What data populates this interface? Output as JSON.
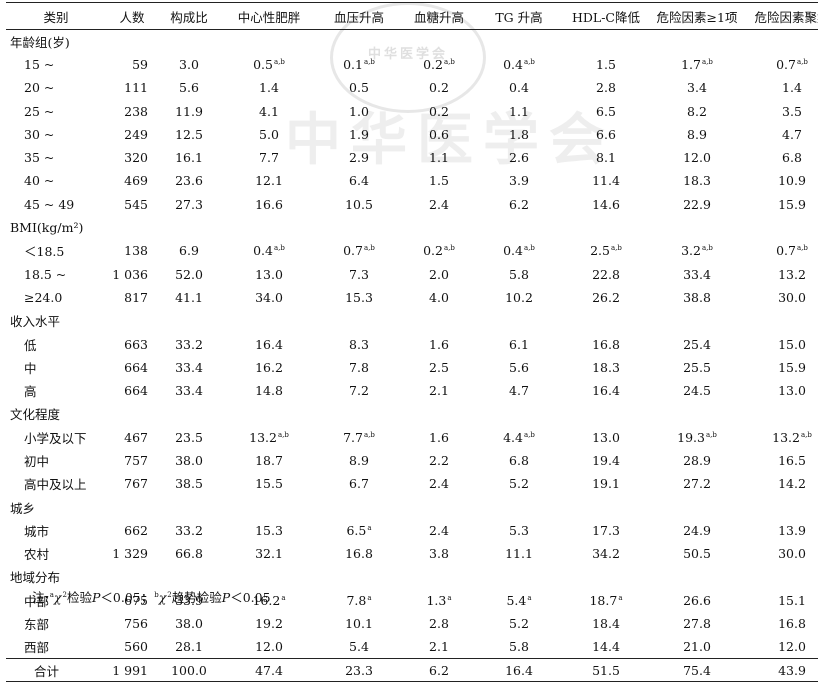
{
  "stamp_text": "中华医学会",
  "watermark_text": "中华医学会",
  "headers": [
    "类别",
    "人数",
    "构成比",
    "中心性肥胖",
    "血压升高",
    "血糖升高",
    "TG 升高",
    "HDL-C降低",
    "危险因素≥1项",
    "危险因素聚集"
  ],
  "groups": [
    {
      "title": "年龄组(岁)",
      "rows": [
        {
          "label": "15 ~",
          "cells": [
            "59",
            "3.0",
            "0.5",
            "0.1",
            "0.2",
            "0.4",
            "1.5",
            "1.7",
            "0.7"
          ],
          "sups": [
            "",
            "",
            "a,b",
            "a,b",
            "a,b",
            "a,b",
            "",
            "a,b",
            "a,b"
          ]
        },
        {
          "label": "20 ~",
          "cells": [
            "111",
            "5.6",
            "1.4",
            "0.5",
            "0.2",
            "0.4",
            "2.8",
            "3.4",
            "1.4"
          ],
          "sups": [
            "",
            "",
            "",
            "",
            "",
            "",
            "",
            "",
            ""
          ]
        },
        {
          "label": "25 ~",
          "cells": [
            "238",
            "11.9",
            "4.1",
            "1.0",
            "0.2",
            "1.1",
            "6.5",
            "8.2",
            "3.5"
          ],
          "sups": [
            "",
            "",
            "",
            "",
            "",
            "",
            "",
            "",
            ""
          ]
        },
        {
          "label": "30 ~",
          "cells": [
            "249",
            "12.5",
            "5.0",
            "1.9",
            "0.6",
            "1.8",
            "6.6",
            "8.9",
            "4.7"
          ],
          "sups": [
            "",
            "",
            "",
            "",
            "",
            "",
            "",
            "",
            ""
          ]
        },
        {
          "label": "35 ~",
          "cells": [
            "320",
            "16.1",
            "7.7",
            "2.9",
            "1.1",
            "2.6",
            "8.1",
            "12.0",
            "6.8"
          ],
          "sups": [
            "",
            "",
            "",
            "",
            "",
            "",
            "",
            "",
            ""
          ]
        },
        {
          "label": "40 ~",
          "cells": [
            "469",
            "23.6",
            "12.1",
            "6.4",
            "1.5",
            "3.9",
            "11.4",
            "18.3",
            "10.9"
          ],
          "sups": [
            "",
            "",
            "",
            "",
            "",
            "",
            "",
            "",
            ""
          ]
        },
        {
          "label": "45 ~ 49",
          "cells": [
            "545",
            "27.3",
            "16.6",
            "10.5",
            "2.4",
            "6.2",
            "14.6",
            "22.9",
            "15.9"
          ],
          "sups": [
            "",
            "",
            "",
            "",
            "",
            "",
            "",
            "",
            ""
          ]
        }
      ]
    },
    {
      "title": "BMI(kg/m²)",
      "rows": [
        {
          "label": "＜18.5",
          "cells": [
            "138",
            "6.9",
            "0.4",
            "0.7",
            "0.2",
            "0.4",
            "2.5",
            "3.2",
            "0.7"
          ],
          "sups": [
            "",
            "",
            "a,b",
            "a,b",
            "a,b",
            "a,b",
            "a,b",
            "a,b",
            "a,b"
          ]
        },
        {
          "label": "18.5 ~",
          "cells": [
            "1 036",
            "52.0",
            "13.0",
            "7.3",
            "2.0",
            "5.8",
            "22.8",
            "33.4",
            "13.2"
          ],
          "sups": [
            "",
            "",
            "",
            "",
            "",
            "",
            "",
            "",
            ""
          ]
        },
        {
          "label": "≥24.0",
          "cells": [
            "817",
            "41.1",
            "34.0",
            "15.3",
            "4.0",
            "10.2",
            "26.2",
            "38.8",
            "30.0"
          ],
          "sups": [
            "",
            "",
            "",
            "",
            "",
            "",
            "",
            "",
            ""
          ]
        }
      ]
    },
    {
      "title": "收入水平",
      "rows": [
        {
          "label": "低",
          "cells": [
            "663",
            "33.2",
            "16.4",
            "8.3",
            "1.6",
            "6.1",
            "16.8",
            "25.4",
            "15.0"
          ],
          "sups": [
            "",
            "",
            "",
            "",
            "",
            "",
            "",
            "",
            ""
          ]
        },
        {
          "label": "中",
          "cells": [
            "664",
            "33.4",
            "16.2",
            "7.8",
            "2.5",
            "5.6",
            "18.3",
            "25.5",
            "15.9"
          ],
          "sups": [
            "",
            "",
            "",
            "",
            "",
            "",
            "",
            "",
            ""
          ]
        },
        {
          "label": "高",
          "cells": [
            "664",
            "33.4",
            "14.8",
            "7.2",
            "2.1",
            "4.7",
            "16.4",
            "24.5",
            "13.0"
          ],
          "sups": [
            "",
            "",
            "",
            "",
            "",
            "",
            "",
            "",
            ""
          ]
        }
      ]
    },
    {
      "title": "文化程度",
      "rows": [
        {
          "label": "小学及以下",
          "cells": [
            "467",
            "23.5",
            "13.2",
            "7.7",
            "1.6",
            "4.4",
            "13.0",
            "19.3",
            "13.2"
          ],
          "sups": [
            "",
            "",
            "a,b",
            "a,b",
            "",
            "a,b",
            "",
            "a,b",
            "a,b"
          ]
        },
        {
          "label": "初中",
          "cells": [
            "757",
            "38.0",
            "18.7",
            "8.9",
            "2.2",
            "6.8",
            "19.4",
            "28.9",
            "16.5"
          ],
          "sups": [
            "",
            "",
            "",
            "",
            "",
            "",
            "",
            "",
            ""
          ]
        },
        {
          "label": "高中及以上",
          "cells": [
            "767",
            "38.5",
            "15.5",
            "6.7",
            "2.4",
            "5.2",
            "19.1",
            "27.2",
            "14.2"
          ],
          "sups": [
            "",
            "",
            "",
            "",
            "",
            "",
            "",
            "",
            ""
          ]
        }
      ]
    },
    {
      "title": "城乡",
      "rows": [
        {
          "label": "城市",
          "cells": [
            "662",
            "33.2",
            "15.3",
            "6.5",
            "2.4",
            "5.3",
            "17.3",
            "24.9",
            "13.9"
          ],
          "sups": [
            "",
            "",
            "",
            "a",
            "",
            "",
            "",
            "",
            ""
          ]
        },
        {
          "label": "农村",
          "cells": [
            "1 329",
            "66.8",
            "32.1",
            "16.8",
            "3.8",
            "11.1",
            "34.2",
            "50.5",
            "30.0"
          ],
          "sups": [
            "",
            "",
            "",
            "",
            "",
            "",
            "",
            "",
            ""
          ]
        }
      ]
    },
    {
      "title": "地域分布",
      "rows": [
        {
          "label": "中部",
          "cells": [
            "675",
            "33.9",
            "16.2",
            "7.8",
            "1.3",
            "5.4",
            "18.7",
            "26.6",
            "15.1"
          ],
          "sups": [
            "",
            "",
            "a",
            "a",
            "a",
            "a",
            "a",
            "",
            ""
          ]
        },
        {
          "label": "东部",
          "cells": [
            "756",
            "38.0",
            "19.2",
            "10.1",
            "2.8",
            "5.2",
            "18.4",
            "27.8",
            "16.8"
          ],
          "sups": [
            "",
            "",
            "",
            "",
            "",
            "",
            "",
            "",
            ""
          ]
        },
        {
          "label": "西部",
          "cells": [
            "560",
            "28.1",
            "12.0",
            "5.4",
            "2.1",
            "5.8",
            "14.4",
            "21.0",
            "12.0"
          ],
          "sups": [
            "",
            "",
            "",
            "",
            "",
            "",
            "",
            "",
            ""
          ]
        }
      ]
    }
  ],
  "total": {
    "label": "合计",
    "cells": [
      "1 991",
      "100.0",
      "47.4",
      "23.3",
      "6.2",
      "16.4",
      "51.5",
      "75.4",
      "43.9"
    ]
  },
  "footnote": {
    "mark_a": "a",
    "text_a": "χ",
    "pow_a": "2",
    "test_a": "检验",
    "p_a": "P",
    "cond_a": "＜0.05；",
    "mark_b": "b",
    "text_b": "χ",
    "pow_b": "2",
    "test_b": "趋势检验",
    "p_b": "P",
    "cond_b": "＜0.05"
  }
}
